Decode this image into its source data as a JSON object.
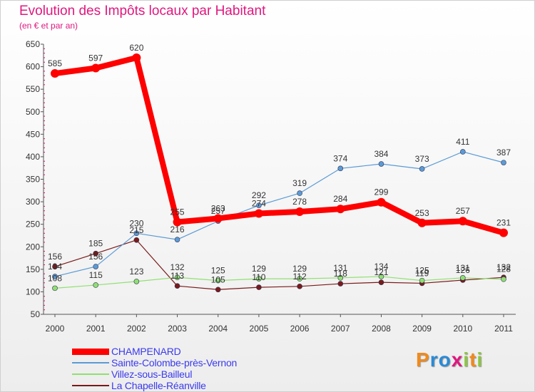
{
  "header": {
    "title": "Evolution des Impôts locaux par Habitant",
    "subtitle": "(en € et par an)"
  },
  "logo": {
    "text": "Proxiti",
    "letters": [
      {
        "char": "P",
        "color": "#f08a1c"
      },
      {
        "char": "r",
        "color": "#2a8ad6"
      },
      {
        "char": "o",
        "color": "#2a8ad6"
      },
      {
        "char": "x",
        "color": "#e0177f"
      },
      {
        "char": "i",
        "color": "#8cc63f"
      },
      {
        "char": "t",
        "color": "#f08a1c"
      },
      {
        "char": "i",
        "color": "#8cc63f"
      }
    ]
  },
  "chart_data": {
    "type": "line",
    "x": [
      "2000",
      "2001",
      "2002",
      "2003",
      "2004",
      "2005",
      "2006",
      "2007",
      "2008",
      "2009",
      "2010",
      "2011"
    ],
    "ylim": [
      50,
      650
    ],
    "yticks": [
      50,
      100,
      150,
      200,
      250,
      300,
      350,
      400,
      450,
      500,
      550,
      600,
      650
    ],
    "grid": false,
    "legend_position": "bottom-left",
    "series": [
      {
        "name": "CHAMPENARD",
        "color": "#ff0000",
        "values": [
          585,
          597,
          620,
          255,
          263,
          274,
          278,
          284,
          299,
          253,
          257,
          231
        ],
        "labels": [
          "585",
          "597",
          "620",
          "255",
          "263",
          "274",
          "278",
          "284",
          "299",
          "253",
          "257",
          "231"
        ]
      },
      {
        "name": "Sainte-Colombe-près-Vernon",
        "color": "#5b9bd5",
        "values": [
          134,
          156,
          230,
          216,
          257,
          292,
          319,
          374,
          384,
          373,
          411,
          387
        ],
        "labels": [
          "134",
          "156",
          "230",
          "216",
          "257",
          "292",
          "319",
          "374",
          "384",
          "373",
          "411",
          "387"
        ]
      },
      {
        "name": "Villez-sous-Bailleul",
        "color": "#8fe070",
        "values": [
          108,
          115,
          123,
          132,
          125,
          129,
          129,
          131,
          134,
          125,
          131,
          128
        ],
        "labels": [
          "108",
          "115",
          "123",
          "132",
          "125",
          "129",
          "129",
          "131",
          "134",
          "125",
          "131",
          "128"
        ]
      },
      {
        "name": "La Chapelle-Réanville",
        "color": "#7a1a1a",
        "values": [
          156,
          185,
          215,
          113,
          105,
          110,
          112,
          118,
          121,
          119,
          126,
          132
        ],
        "labels": [
          "156",
          "185",
          "215",
          "113",
          "105",
          "110",
          "112",
          "118",
          "121",
          "119",
          "126",
          "132"
        ]
      }
    ]
  }
}
